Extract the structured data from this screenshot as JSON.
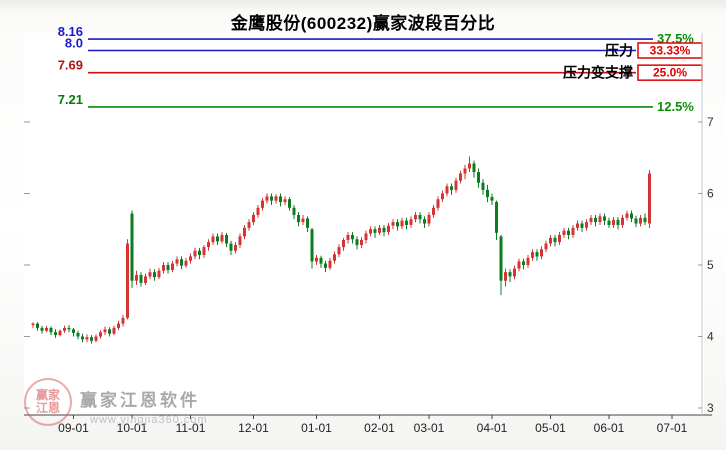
{
  "title": "金鹰股份(600232)赢家波段百分比",
  "watermark": {
    "brand": "赢家江恩软件",
    "url": "www.yingjia360.com",
    "seal_text": "赢家江恩"
  },
  "chart_data": {
    "type": "candlestick",
    "title": "金鹰股份(600232)赢家波段百分比",
    "colors": {
      "up": "#d53434",
      "down": "#0a7d20",
      "box": "#e00000",
      "axis": "#444444",
      "axis_text": "#222222"
    },
    "levels": [
      {
        "price": 8.16,
        "price_label": "8.16",
        "pct_label": "37.5%",
        "name": "",
        "boxed": false,
        "line_color": "#1a1acc",
        "price_color": "#1a1acc",
        "pct_color": "#0a8f0a"
      },
      {
        "price": 8.0,
        "price_label": "8.0",
        "pct_label": "33.33%",
        "name": "压力",
        "boxed": true,
        "line_color": "#1a1acc",
        "price_color": "#1a1acc",
        "pct_color": "#e00000"
      },
      {
        "price": 7.69,
        "price_label": "7.69",
        "pct_label": "25.0%",
        "name": "压力变支撑",
        "boxed": true,
        "line_color": "#cc1212",
        "price_color": "#b01414",
        "pct_color": "#e00000"
      },
      {
        "price": 7.21,
        "price_label": "7.21",
        "pct_label": "12.5%",
        "name": "",
        "boxed": false,
        "line_color": "#0a8a0a",
        "price_color": "#077a07",
        "pct_color": "#0a8f0a"
      }
    ],
    "y_axis": {
      "ticks": [
        7,
        6,
        5,
        4,
        3
      ],
      "min": 3,
      "max": 7.3
    },
    "x_axis": {
      "labels": [
        "09-01",
        "10-01",
        "11-01",
        "12-01",
        "01-01",
        "02-01",
        "03-01",
        "04-01",
        "05-01",
        "06-01",
        "07-01"
      ],
      "tick_indices": [
        9,
        22,
        35,
        49,
        63,
        77,
        88,
        102,
        115,
        128,
        142
      ]
    },
    "candles": [
      [
        4.16,
        4.2,
        4.12,
        4.18
      ],
      [
        4.18,
        4.2,
        4.08,
        4.12
      ],
      [
        4.12,
        4.15,
        4.04,
        4.08
      ],
      [
        4.08,
        4.15,
        4.06,
        4.12
      ],
      [
        4.12,
        4.14,
        4.02,
        4.06
      ],
      [
        4.06,
        4.1,
        3.98,
        4.02
      ],
      [
        4.02,
        4.1,
        4.0,
        4.08
      ],
      [
        4.08,
        4.15,
        4.05,
        4.12
      ],
      [
        4.12,
        4.16,
        4.06,
        4.1
      ],
      [
        4.1,
        4.12,
        4.0,
        4.05
      ],
      [
        4.05,
        4.08,
        3.96,
        4.0
      ],
      [
        4.0,
        4.04,
        3.92,
        3.96
      ],
      [
        3.96,
        4.03,
        3.92,
        3.99
      ],
      [
        3.99,
        4.02,
        3.9,
        3.94
      ],
      [
        3.94,
        4.03,
        3.92,
        4.0
      ],
      [
        4.0,
        4.09,
        3.97,
        4.06
      ],
      [
        4.06,
        4.14,
        4.02,
        4.1
      ],
      [
        4.1,
        4.13,
        4.0,
        4.04
      ],
      [
        4.04,
        4.15,
        4.02,
        4.12
      ],
      [
        4.12,
        4.22,
        4.09,
        4.18
      ],
      [
        4.18,
        4.3,
        4.14,
        4.26
      ],
      [
        4.26,
        5.36,
        4.24,
        5.3
      ],
      [
        5.72,
        5.76,
        4.68,
        4.78
      ],
      [
        4.78,
        4.92,
        4.72,
        4.86
      ],
      [
        4.86,
        4.9,
        4.7,
        4.75
      ],
      [
        4.75,
        4.88,
        4.72,
        4.84
      ],
      [
        4.84,
        4.95,
        4.8,
        4.9
      ],
      [
        4.9,
        4.94,
        4.78,
        4.83
      ],
      [
        4.83,
        4.96,
        4.8,
        4.92
      ],
      [
        4.92,
        5.04,
        4.88,
        5.0
      ],
      [
        5.0,
        5.04,
        4.88,
        4.93
      ],
      [
        4.93,
        5.06,
        4.9,
        5.02
      ],
      [
        5.02,
        5.12,
        4.98,
        5.08
      ],
      [
        5.08,
        5.12,
        4.94,
        4.99
      ],
      [
        4.99,
        5.1,
        4.96,
        5.06
      ],
      [
        5.06,
        5.16,
        5.02,
        5.12
      ],
      [
        5.12,
        5.24,
        5.08,
        5.2
      ],
      [
        5.2,
        5.24,
        5.08,
        5.14
      ],
      [
        5.14,
        5.28,
        5.1,
        5.25
      ],
      [
        5.25,
        5.36,
        5.2,
        5.32
      ],
      [
        5.32,
        5.44,
        5.28,
        5.4
      ],
      [
        5.4,
        5.44,
        5.28,
        5.33
      ],
      [
        5.33,
        5.46,
        5.3,
        5.42
      ],
      [
        5.42,
        5.45,
        5.25,
        5.3
      ],
      [
        5.3,
        5.34,
        5.14,
        5.2
      ],
      [
        5.2,
        5.32,
        5.16,
        5.28
      ],
      [
        5.28,
        5.44,
        5.24,
        5.4
      ],
      [
        5.4,
        5.56,
        5.36,
        5.52
      ],
      [
        5.52,
        5.64,
        5.48,
        5.6
      ],
      [
        5.6,
        5.74,
        5.56,
        5.7
      ],
      [
        5.7,
        5.84,
        5.66,
        5.8
      ],
      [
        5.8,
        5.94,
        5.76,
        5.9
      ],
      [
        5.9,
        6.0,
        5.86,
        5.96
      ],
      [
        5.96,
        6.0,
        5.84,
        5.9
      ],
      [
        5.9,
        5.99,
        5.86,
        5.96
      ],
      [
        5.96,
        6.0,
        5.82,
        5.88
      ],
      [
        5.88,
        5.96,
        5.84,
        5.92
      ],
      [
        5.92,
        5.95,
        5.76,
        5.8
      ],
      [
        5.8,
        5.84,
        5.64,
        5.7
      ],
      [
        5.7,
        5.74,
        5.54,
        5.6
      ],
      [
        5.6,
        5.7,
        5.56,
        5.65
      ],
      [
        5.65,
        5.68,
        5.46,
        5.52
      ],
      [
        5.5,
        5.52,
        4.95,
        5.05
      ],
      [
        5.05,
        5.14,
        5.0,
        5.1
      ],
      [
        5.1,
        5.13,
        4.96,
        5.02
      ],
      [
        5.02,
        5.06,
        4.9,
        4.96
      ],
      [
        4.96,
        5.1,
        4.93,
        5.06
      ],
      [
        5.06,
        5.19,
        5.02,
        5.15
      ],
      [
        5.15,
        5.29,
        5.11,
        5.25
      ],
      [
        5.25,
        5.38,
        5.2,
        5.35
      ],
      [
        5.35,
        5.46,
        5.3,
        5.42
      ],
      [
        5.42,
        5.46,
        5.3,
        5.36
      ],
      [
        5.36,
        5.4,
        5.22,
        5.28
      ],
      [
        5.28,
        5.39,
        5.24,
        5.35
      ],
      [
        5.35,
        5.48,
        5.3,
        5.44
      ],
      [
        5.44,
        5.54,
        5.4,
        5.5
      ],
      [
        5.5,
        5.54,
        5.38,
        5.45
      ],
      [
        5.45,
        5.56,
        5.42,
        5.52
      ],
      [
        5.52,
        5.56,
        5.4,
        5.46
      ],
      [
        5.46,
        5.59,
        5.42,
        5.55
      ],
      [
        5.55,
        5.64,
        5.5,
        5.6
      ],
      [
        5.6,
        5.64,
        5.48,
        5.54
      ],
      [
        5.54,
        5.66,
        5.5,
        5.62
      ],
      [
        5.62,
        5.66,
        5.5,
        5.56
      ],
      [
        5.56,
        5.68,
        5.52,
        5.64
      ],
      [
        5.64,
        5.74,
        5.6,
        5.7
      ],
      [
        5.7,
        5.74,
        5.58,
        5.64
      ],
      [
        5.64,
        5.68,
        5.52,
        5.58
      ],
      [
        5.58,
        5.74,
        5.54,
        5.7
      ],
      [
        5.7,
        5.84,
        5.66,
        5.8
      ],
      [
        5.8,
        5.96,
        5.76,
        5.92
      ],
      [
        5.92,
        6.04,
        5.88,
        6.0
      ],
      [
        6.0,
        6.14,
        5.96,
        6.1
      ],
      [
        6.1,
        6.14,
        5.98,
        6.05
      ],
      [
        6.05,
        6.22,
        6.01,
        6.18
      ],
      [
        6.18,
        6.32,
        6.14,
        6.28
      ],
      [
        6.28,
        6.4,
        6.2,
        6.35
      ],
      [
        6.35,
        6.52,
        6.3,
        6.42
      ],
      [
        6.42,
        6.46,
        6.22,
        6.3
      ],
      [
        6.3,
        6.35,
        6.08,
        6.15
      ],
      [
        6.15,
        6.2,
        5.98,
        6.05
      ],
      [
        6.05,
        6.12,
        5.88,
        5.95
      ],
      [
        5.95,
        6.0,
        5.84,
        5.9
      ],
      [
        5.88,
        5.9,
        5.35,
        5.45
      ],
      [
        5.4,
        5.42,
        4.58,
        4.78
      ],
      [
        4.78,
        4.95,
        4.7,
        4.9
      ],
      [
        4.9,
        4.94,
        4.76,
        4.84
      ],
      [
        4.84,
        4.99,
        4.8,
        4.95
      ],
      [
        4.95,
        5.09,
        4.91,
        5.05
      ],
      [
        5.05,
        5.09,
        4.94,
        5.0
      ],
      [
        5.0,
        5.14,
        4.96,
        5.1
      ],
      [
        5.1,
        5.22,
        5.06,
        5.18
      ],
      [
        5.18,
        5.22,
        5.06,
        5.12
      ],
      [
        5.12,
        5.26,
        5.08,
        5.22
      ],
      [
        5.22,
        5.34,
        5.18,
        5.3
      ],
      [
        5.3,
        5.42,
        5.26,
        5.38
      ],
      [
        5.38,
        5.42,
        5.26,
        5.32
      ],
      [
        5.32,
        5.46,
        5.28,
        5.42
      ],
      [
        5.42,
        5.52,
        5.38,
        5.48
      ],
      [
        5.48,
        5.52,
        5.36,
        5.42
      ],
      [
        5.42,
        5.56,
        5.38,
        5.52
      ],
      [
        5.52,
        5.62,
        5.48,
        5.58
      ],
      [
        5.58,
        5.62,
        5.46,
        5.52
      ],
      [
        5.52,
        5.64,
        5.48,
        5.6
      ],
      [
        5.6,
        5.7,
        5.56,
        5.66
      ],
      [
        5.66,
        5.7,
        5.54,
        5.6
      ],
      [
        5.6,
        5.72,
        5.56,
        5.68
      ],
      [
        5.68,
        5.72,
        5.56,
        5.62
      ],
      [
        5.62,
        5.66,
        5.52,
        5.56
      ],
      [
        5.56,
        5.67,
        5.52,
        5.63
      ],
      [
        5.63,
        5.67,
        5.5,
        5.56
      ],
      [
        5.56,
        5.7,
        5.52,
        5.66
      ],
      [
        5.66,
        5.76,
        5.62,
        5.72
      ],
      [
        5.72,
        5.76,
        5.6,
        5.65
      ],
      [
        5.65,
        5.69,
        5.53,
        5.58
      ],
      [
        5.58,
        5.7,
        5.54,
        5.66
      ],
      [
        5.66,
        5.72,
        5.56,
        5.6
      ],
      [
        5.58,
        6.33,
        5.52,
        6.28
      ]
    ]
  }
}
